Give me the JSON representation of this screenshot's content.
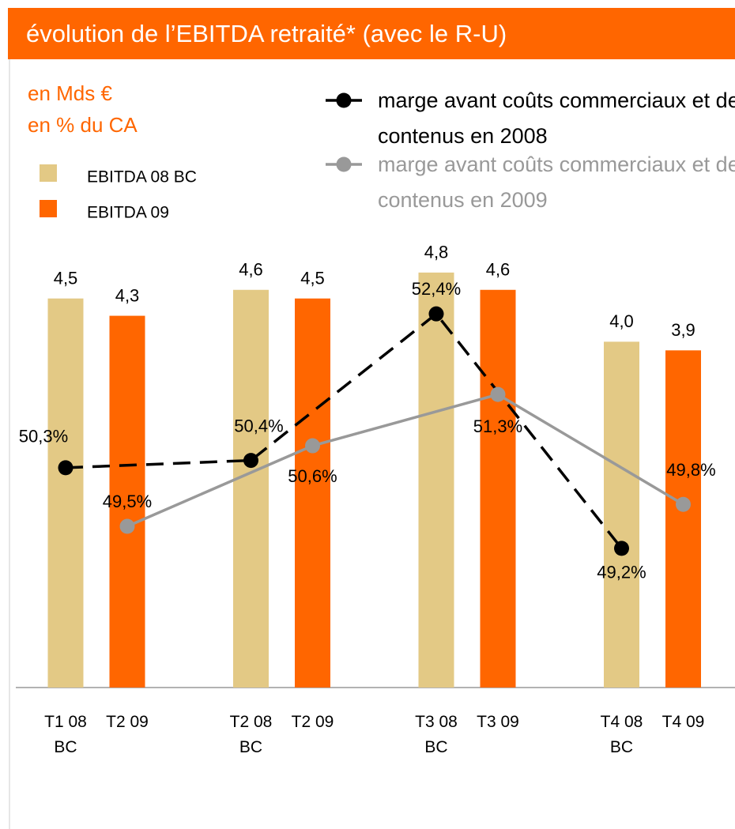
{
  "chart_data": {
    "type": "bar",
    "title": "évolution de l’EBITDA retraité* (avec le R-U)",
    "subtitle": "en Mds €",
    "y2_label": "en % du CA",
    "ylim": [
      0,
      5
    ],
    "y2lim": [
      47.3,
      53.2
    ],
    "series": [
      {
        "name": "EBITDA 08 BC",
        "color": "#e3c985",
        "labels": [
          "T1 08 BC",
          "T2 08 BC",
          "T3 08 BC",
          "T4 08 BC"
        ],
        "values": [
          4.5,
          4.6,
          4.8,
          4.0
        ],
        "value_labels": [
          "4,5",
          "4,6",
          "4,8",
          "4,0"
        ]
      },
      {
        "name": "EBITDA 09",
        "color": "#ff6600",
        "labels": [
          "T2 09",
          "T2 09",
          "T3 09",
          "T4 09"
        ],
        "values": [
          4.3,
          4.5,
          4.6,
          3.9
        ],
        "value_labels": [
          "4,3",
          "4,5",
          "4,6",
          "3,9"
        ]
      },
      {
        "name": "marge avant coûts commerciaux et de contenus en 2008",
        "type": "line",
        "axis": "y2",
        "at_series": 0,
        "line_style": "dashed",
        "color": "#000000",
        "values": [
          50.3,
          50.4,
          52.4,
          49.2
        ],
        "value_labels": [
          "50,3%",
          "50,4%",
          "52,4%",
          "49,2%"
        ]
      },
      {
        "name": "marge avant coûts commerciaux et de contenus en 2009",
        "type": "line",
        "axis": "y2",
        "at_series": 1,
        "line_style": "solid",
        "color": "#999999",
        "values": [
          49.5,
          50.6,
          51.3,
          49.8
        ],
        "value_labels": [
          "49,5%",
          "50,6%",
          "51,3%",
          "49,8%"
        ]
      }
    ]
  }
}
